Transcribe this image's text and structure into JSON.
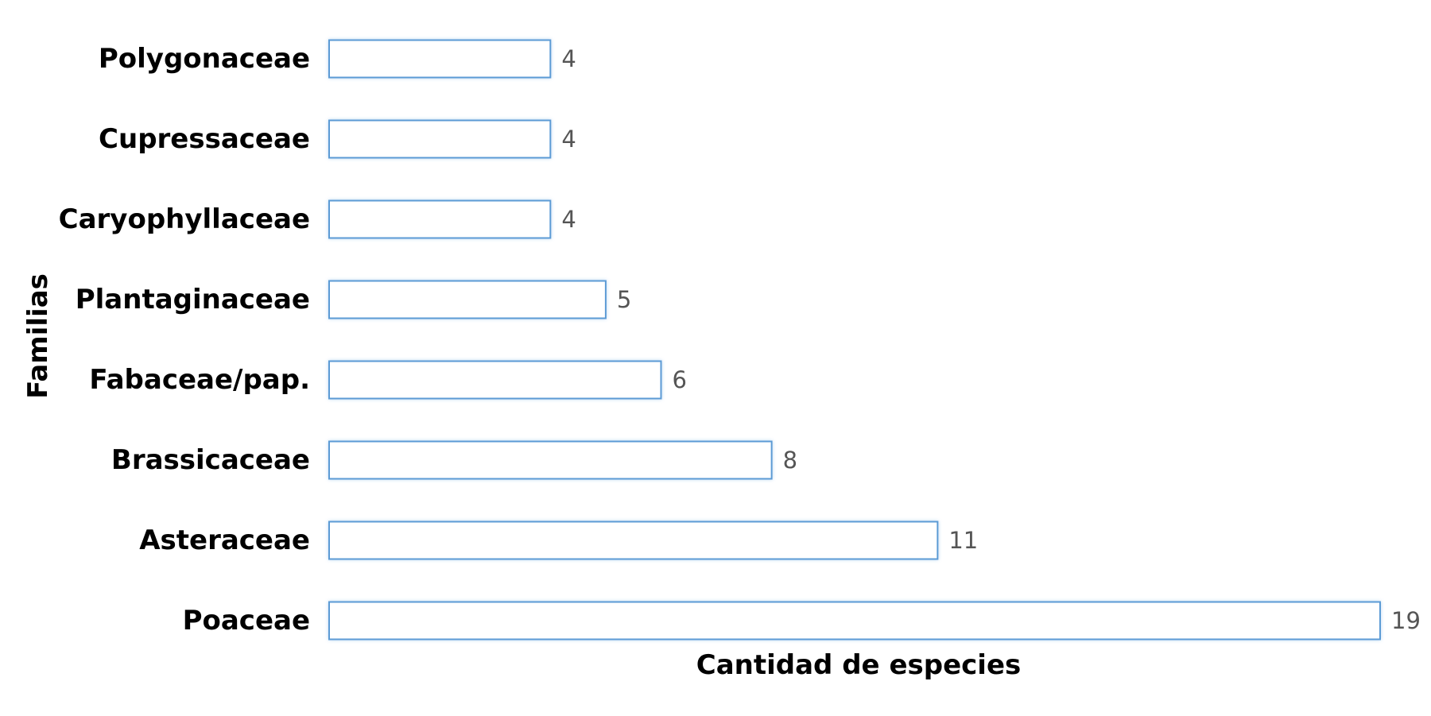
{
  "chart_data": {
    "type": "bar",
    "orientation": "horizontal",
    "categories": [
      "Polygonaceae",
      "Cupressaceae",
      "Caryophyllaceae",
      "Plantaginaceae",
      "Fabaceae/pap.",
      "Brassicaceae",
      "Asteraceae",
      "Poaceae"
    ],
    "values": [
      4,
      4,
      4,
      5,
      6,
      8,
      11,
      19
    ],
    "value_labels": [
      "4",
      "4",
      "4",
      "5",
      "6",
      "8",
      "11",
      "19"
    ],
    "xlabel": "Cantidad de especies",
    "ylabel": "Familias",
    "xlim": [
      0,
      19
    ],
    "grid": false,
    "bar_fill": "#ffffff",
    "bar_stroke": "#5b9bd5",
    "bar_glow": "#bcd8f3"
  }
}
